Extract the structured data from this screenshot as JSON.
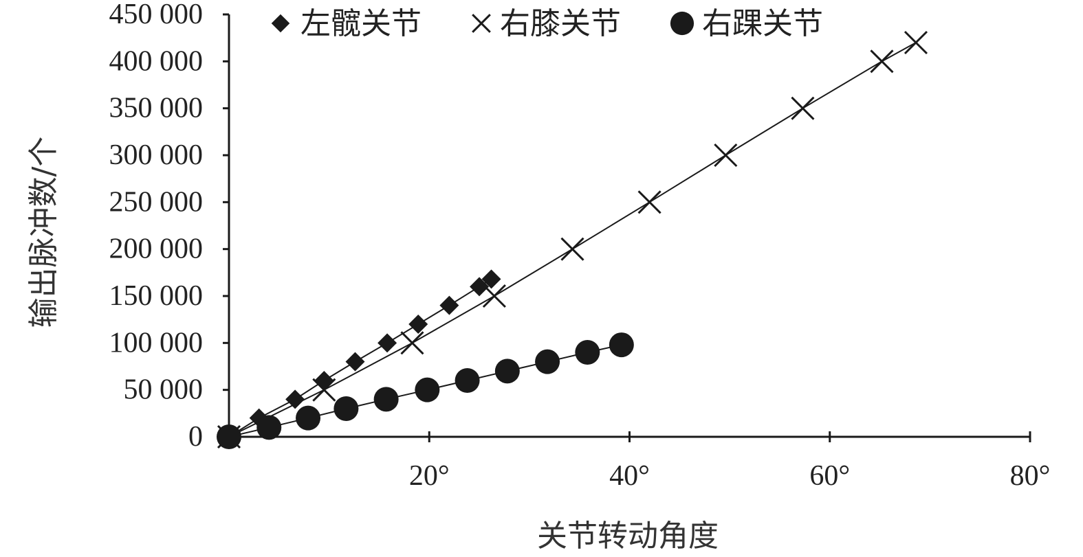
{
  "chart_data": {
    "type": "scatter",
    "xlabel": "关节转动角度",
    "ylabel": "输出脉冲数/个",
    "xlim": [
      0,
      80
    ],
    "ylim": [
      0,
      450000
    ],
    "x_ticks": [
      {
        "value": 20,
        "label": "20°"
      },
      {
        "value": 40,
        "label": "40°"
      },
      {
        "value": 60,
        "label": "60°"
      },
      {
        "value": 80,
        "label": "80°"
      }
    ],
    "y_ticks": [
      {
        "value": 0,
        "label": "0"
      },
      {
        "value": 50000,
        "label": "50 000"
      },
      {
        "value": 100000,
        "label": "100 000"
      },
      {
        "value": 150000,
        "label": "150 000"
      },
      {
        "value": 200000,
        "label": "200 000"
      },
      {
        "value": 250000,
        "label": "250 000"
      },
      {
        "value": 300000,
        "label": "300 000"
      },
      {
        "value": 350000,
        "label": "350 000"
      },
      {
        "value": 400000,
        "label": "400 000"
      },
      {
        "value": 450000,
        "label": "450 000"
      }
    ],
    "legend_position": "top",
    "grid": false,
    "series": [
      {
        "name": "左髋关节",
        "marker": "diamond",
        "color": "#1a1a1a",
        "points": [
          [
            0,
            0
          ],
          [
            3.0,
            20000
          ],
          [
            6.6,
            40000
          ],
          [
            9.5,
            60000
          ],
          [
            12.6,
            80000
          ],
          [
            15.8,
            100000
          ],
          [
            18.9,
            120000
          ],
          [
            22.0,
            140000
          ],
          [
            25.0,
            160000
          ],
          [
            26.2,
            168000
          ]
        ]
      },
      {
        "name": "右膝关节",
        "marker": "cross",
        "color": "#1a1a1a",
        "points": [
          [
            0,
            0
          ],
          [
            9.5,
            50000
          ],
          [
            18.3,
            100000
          ],
          [
            26.5,
            150000
          ],
          [
            34.3,
            200000
          ],
          [
            42.0,
            250000
          ],
          [
            49.6,
            300000
          ],
          [
            57.3,
            350000
          ],
          [
            65.2,
            400000
          ],
          [
            68.6,
            420000
          ]
        ]
      },
      {
        "name": "右踝关节",
        "marker": "circle",
        "color": "#1a1a1a",
        "points": [
          [
            0,
            0
          ],
          [
            4.0,
            10000
          ],
          [
            7.9,
            20000
          ],
          [
            11.7,
            30000
          ],
          [
            15.7,
            40000
          ],
          [
            19.8,
            50000
          ],
          [
            23.8,
            60000
          ],
          [
            27.8,
            70000
          ],
          [
            31.8,
            80000
          ],
          [
            35.8,
            90000
          ],
          [
            39.2,
            98000
          ]
        ]
      }
    ]
  }
}
